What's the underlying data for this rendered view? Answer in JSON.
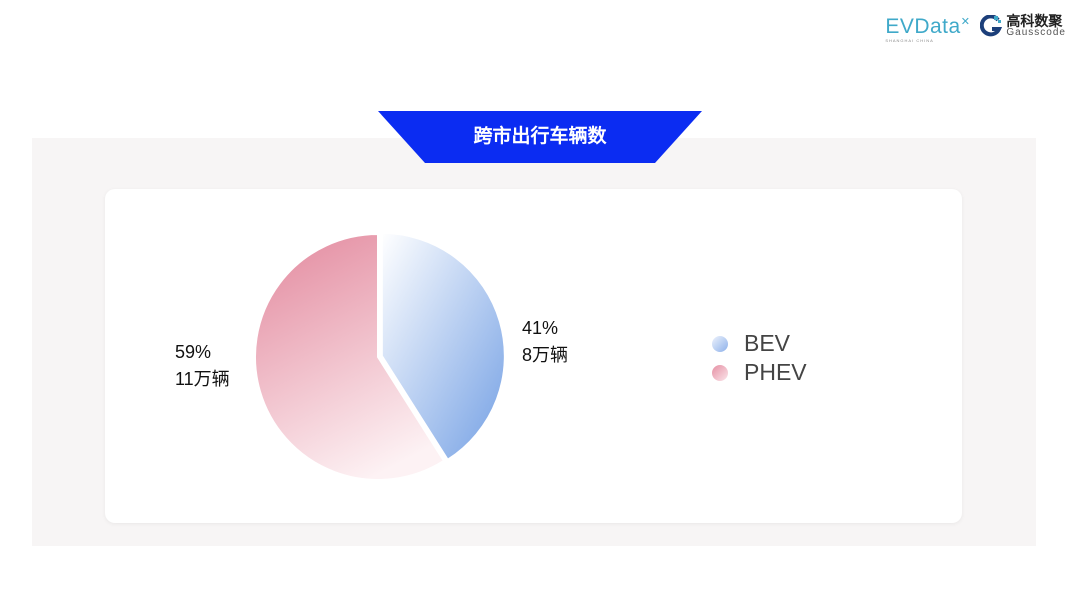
{
  "logos": {
    "evdata": "EVData",
    "evdata_sub": "SHANGHAI CHINA",
    "gausscode_cn": "高科数聚",
    "gausscode_en": "Gausscode"
  },
  "colors": {
    "banner": "#0b2cf2",
    "bev": "#7fa6e6",
    "phev": "#e58fa3",
    "panel": "#f7f5f5"
  },
  "chart_data": {
    "type": "pie",
    "title": "跨市出行车辆数",
    "slices": [
      {
        "name": "BEV",
        "percent": 41,
        "label_pct": "41%",
        "label_val": "8万辆",
        "value_wan": 8
      },
      {
        "name": "PHEV",
        "percent": 59,
        "label_pct": "59%",
        "label_val": "11万辆",
        "value_wan": 11
      }
    ],
    "legend_position": "right"
  }
}
